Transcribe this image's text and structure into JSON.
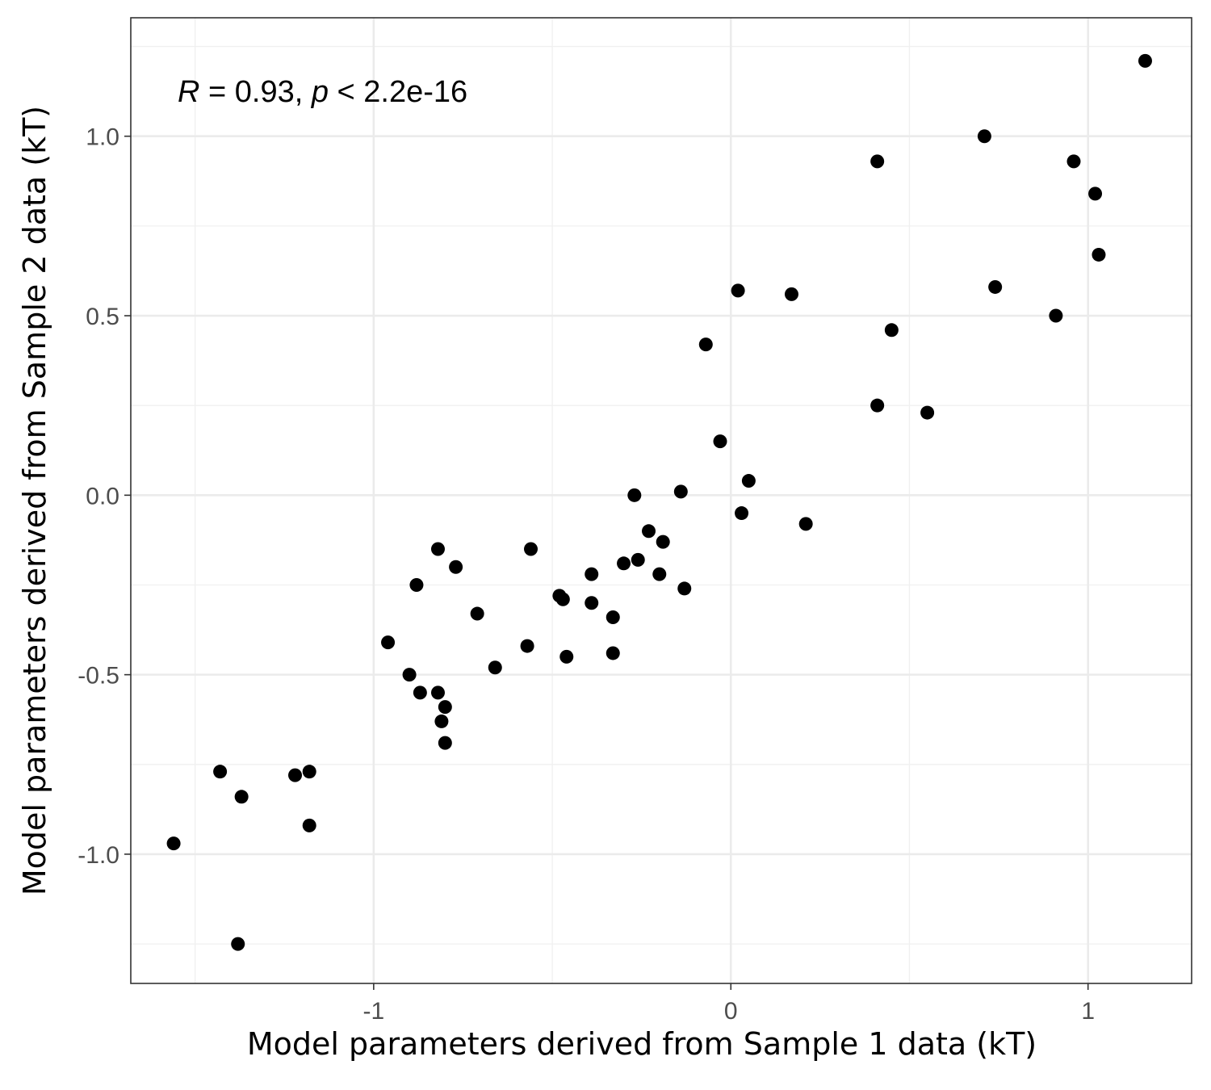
{
  "chart_data": {
    "type": "scatter",
    "title": "",
    "xlabel": "Model parameters derived from Sample 1 data (kT)",
    "ylabel": "Model parameters derived from Sample 2 data (kT)",
    "xlim": [
      -1.68,
      1.29
    ],
    "ylim": [
      -1.36,
      1.33
    ],
    "x_ticks": [
      -1,
      0,
      1
    ],
    "x_tick_labels": [
      "-1",
      "0",
      "1"
    ],
    "y_ticks": [
      -1.0,
      -0.5,
      0.0,
      0.5,
      1.0
    ],
    "y_tick_labels": [
      "-1.0",
      "-0.5",
      "0.0",
      "0.5",
      "1.0"
    ],
    "grid": true,
    "legend": "none",
    "point_color": "#000000",
    "annotation": {
      "r_symbol": "R",
      "r_value": " = 0.93, ",
      "p_symbol": "p",
      "p_value": " < 2.2e-16"
    },
    "points": [
      {
        "x": -1.56,
        "y": -0.97
      },
      {
        "x": -1.43,
        "y": -0.77
      },
      {
        "x": -1.37,
        "y": -0.84
      },
      {
        "x": -1.38,
        "y": -1.25
      },
      {
        "x": -1.22,
        "y": -0.78
      },
      {
        "x": -1.18,
        "y": -0.77
      },
      {
        "x": -1.18,
        "y": -0.92
      },
      {
        "x": -0.96,
        "y": -0.41
      },
      {
        "x": -0.9,
        "y": -0.5
      },
      {
        "x": -0.88,
        "y": -0.25
      },
      {
        "x": -0.87,
        "y": -0.55
      },
      {
        "x": -0.82,
        "y": -0.15
      },
      {
        "x": -0.82,
        "y": -0.55
      },
      {
        "x": -0.81,
        "y": -0.63
      },
      {
        "x": -0.8,
        "y": -0.59
      },
      {
        "x": -0.8,
        "y": -0.69
      },
      {
        "x": -0.77,
        "y": -0.2
      },
      {
        "x": -0.71,
        "y": -0.33
      },
      {
        "x": -0.66,
        "y": -0.48
      },
      {
        "x": -0.56,
        "y": -0.15
      },
      {
        "x": -0.57,
        "y": -0.42
      },
      {
        "x": -0.48,
        "y": -0.28
      },
      {
        "x": -0.47,
        "y": -0.29
      },
      {
        "x": -0.46,
        "y": -0.45
      },
      {
        "x": -0.39,
        "y": -0.22
      },
      {
        "x": -0.39,
        "y": -0.3
      },
      {
        "x": -0.33,
        "y": -0.34
      },
      {
        "x": -0.33,
        "y": -0.44
      },
      {
        "x": -0.3,
        "y": -0.19
      },
      {
        "x": -0.27,
        "y": 0.0
      },
      {
        "x": -0.26,
        "y": -0.18
      },
      {
        "x": -0.23,
        "y": -0.1
      },
      {
        "x": -0.2,
        "y": -0.22
      },
      {
        "x": -0.19,
        "y": -0.13
      },
      {
        "x": -0.14,
        "y": 0.01
      },
      {
        "x": -0.13,
        "y": -0.26
      },
      {
        "x": -0.07,
        "y": 0.42
      },
      {
        "x": -0.03,
        "y": 0.15
      },
      {
        "x": 0.02,
        "y": 0.57
      },
      {
        "x": 0.03,
        "y": -0.05
      },
      {
        "x": 0.05,
        "y": 0.04
      },
      {
        "x": 0.17,
        "y": 0.56
      },
      {
        "x": 0.21,
        "y": -0.08
      },
      {
        "x": 0.41,
        "y": 0.93
      },
      {
        "x": 0.41,
        "y": 0.25
      },
      {
        "x": 0.45,
        "y": 0.46
      },
      {
        "x": 0.55,
        "y": 0.23
      },
      {
        "x": 0.71,
        "y": 1.0
      },
      {
        "x": 0.74,
        "y": 0.58
      },
      {
        "x": 0.91,
        "y": 0.5
      },
      {
        "x": 0.96,
        "y": 0.93
      },
      {
        "x": 1.02,
        "y": 0.84
      },
      {
        "x": 1.03,
        "y": 0.67
      },
      {
        "x": 1.16,
        "y": 1.21
      }
    ]
  }
}
